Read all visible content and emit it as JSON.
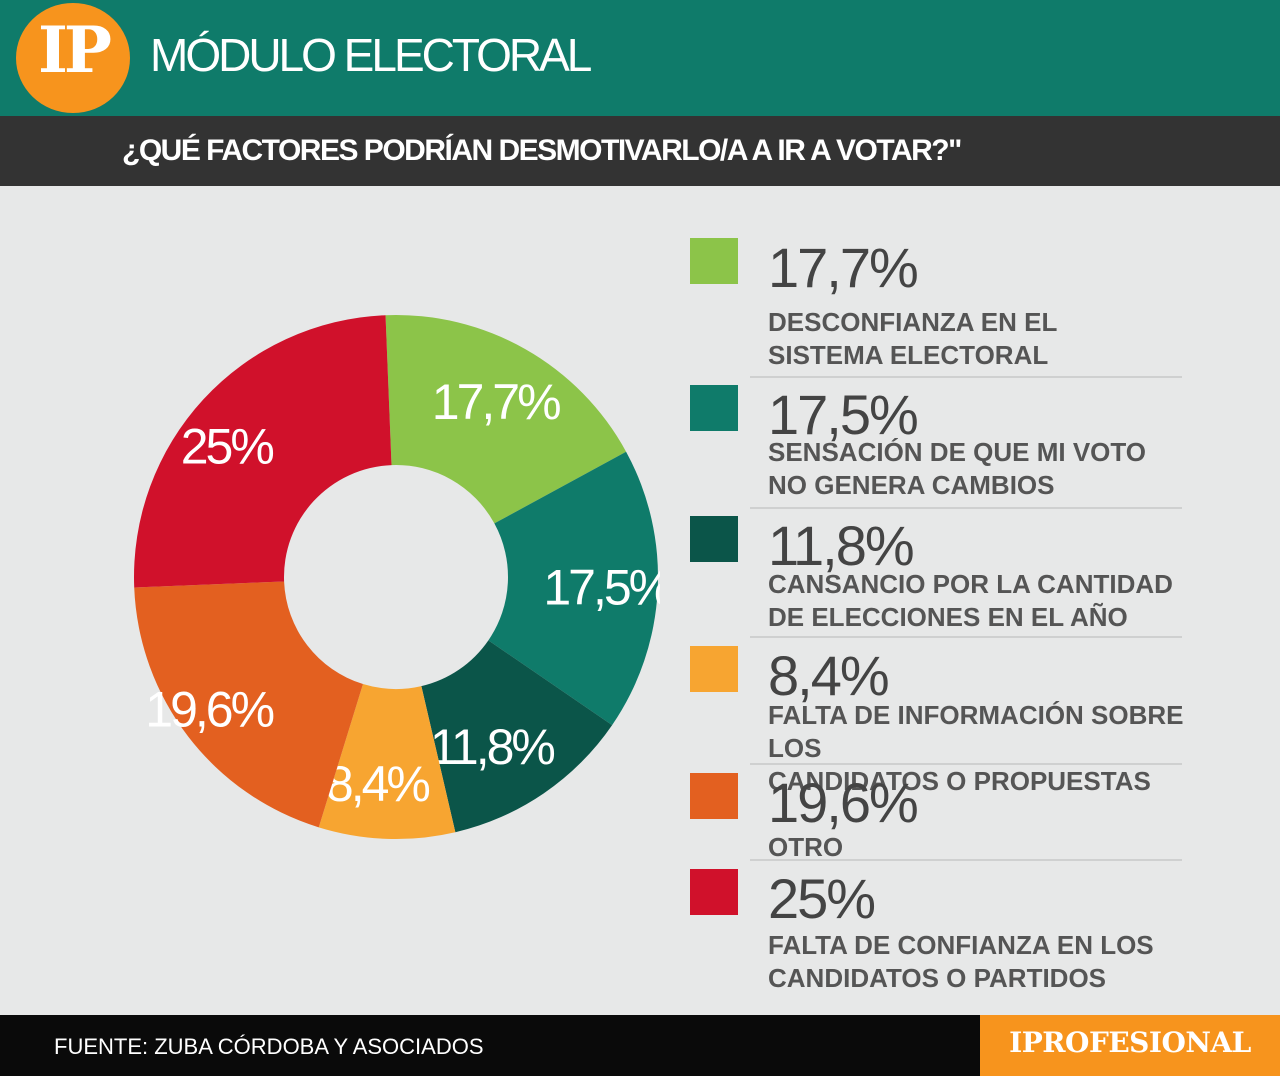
{
  "header": {
    "logo_text": "IP",
    "module_title": "MÓDULO ELECTORAL",
    "question": "¿QUÉ FACTORES PODRÍAN DESMOTIVARLO/A A IR A VOTAR?\""
  },
  "chart_data": {
    "type": "pie",
    "donut": true,
    "title": "¿QUÉ FACTORES PODRÍAN DESMOTIVARLO/A A IR A VOTAR?\"",
    "unit": "%",
    "slices": [
      {
        "value": 17.7,
        "label": "17,7%",
        "name": "DESCONFIANZA EN EL SISTEMA ELECTORAL",
        "color": "#8cc449"
      },
      {
        "value": 17.5,
        "label": "17,5%",
        "name": "SENSACIÓN DE QUE MI VOTO NO GENERA CAMBIOS",
        "color": "#0f7b6a"
      },
      {
        "value": 11.8,
        "label": "11,8%",
        "name": "CANSANCIO POR LA CANTIDAD DE ELECCIONES EN EL AÑO",
        "color": "#0b5549"
      },
      {
        "value": 8.4,
        "label": "8,4%",
        "name": "FALTA DE INFORMACIÓN SOBRE LOS CANDIDATOS O PROPUESTAS",
        "color": "#f7a531"
      },
      {
        "value": 19.6,
        "label": "19,6%",
        "name": "OTRO",
        "color": "#e36020"
      },
      {
        "value": 25,
        "label": "25%",
        "name": "FALTA DE CONFIANZA EN LOS CANDIDATOS O PARTIDOS",
        "color": "#d0112b"
      }
    ]
  },
  "legend": {
    "items": [
      {
        "value": "17,7%",
        "line1": "DESCONFIANZA EN EL",
        "line2": "SISTEMA ELECTORAL"
      },
      {
        "value": "17,5%",
        "line1": "SENSACIÓN DE QUE MI VOTO",
        "line2": "NO GENERA CAMBIOS"
      },
      {
        "value": "11,8%",
        "line1": "CANSANCIO POR LA CANTIDAD",
        "line2": "DE ELECCIONES EN EL AÑO"
      },
      {
        "value": "8,4%",
        "line1": "FALTA DE INFORMACIÓN SOBRE LOS",
        "line2": "CANDIDATOS O PROPUESTAS"
      },
      {
        "value": "19,6%",
        "line1": "OTRO",
        "line2": ""
      },
      {
        "value": "25%",
        "line1": "FALTA DE CONFIANZA EN LOS",
        "line2": "CANDIDATOS O PARTIDOS"
      }
    ]
  },
  "footer": {
    "source": "FUENTE: ZUBA CÓRDOBA Y ASOCIADOS",
    "brand": "IPROFESIONAL"
  }
}
